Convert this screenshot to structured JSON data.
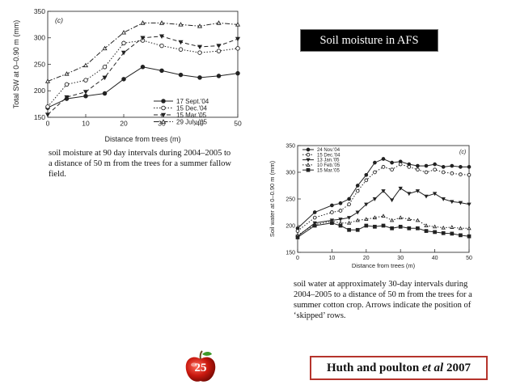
{
  "slide": {
    "title": "Soil moisture in AFS",
    "page_number": "25",
    "credit_main": "Huth and poulton ",
    "credit_italic": "et al",
    "credit_year": " 2007",
    "caption_left": "soil moisture at 90 day intervals during 2004–2005 to a distance of 50 m from the trees for a summer fallow field.",
    "caption_right": "soil water at approximately 30-day intervals during 2004–2005 to a distance of 50 m from the trees for a summer cotton crop. Arrows indicate the position of ‘skipped’ rows."
  },
  "chart_data": [
    {
      "type": "line",
      "panel_label": "(c)",
      "xlabel": "Distance from trees (m)",
      "ylabel": "Total SW at 0–0.90 m (mm)",
      "xlim": [
        0,
        50
      ],
      "ylim": [
        150,
        350
      ],
      "xticks": [
        0,
        10,
        20,
        30,
        40,
        50
      ],
      "yticks": [
        150,
        200,
        250,
        300,
        350
      ],
      "grid": false,
      "legend_position": "bottom-right",
      "series": [
        {
          "name": "17 Sept.'04",
          "marker": "filled-circle",
          "dash": "solid",
          "x": [
            0,
            5,
            10,
            15,
            20,
            25,
            30,
            35,
            40,
            45,
            50
          ],
          "y": [
            168,
            185,
            190,
            195,
            222,
            245,
            238,
            230,
            225,
            228,
            233
          ]
        },
        {
          "name": "15 Dec.'04",
          "marker": "open-circle",
          "dash": "dotted",
          "x": [
            0,
            5,
            10,
            15,
            20,
            25,
            30,
            35,
            40,
            45,
            50
          ],
          "y": [
            170,
            212,
            220,
            245,
            290,
            295,
            285,
            278,
            272,
            275,
            280
          ]
        },
        {
          "name": "15 Mar.'05",
          "marker": "filled-triangle-down",
          "dash": "dashed",
          "x": [
            0,
            5,
            10,
            15,
            20,
            25,
            30,
            35,
            40,
            45,
            50
          ],
          "y": [
            155,
            188,
            198,
            225,
            272,
            300,
            303,
            292,
            283,
            285,
            298
          ]
        },
        {
          "name": "29 July '05",
          "marker": "open-triangle-up",
          "dash": "dashdot",
          "x": [
            0,
            5,
            10,
            15,
            20,
            25,
            30,
            35,
            40,
            45,
            50
          ],
          "y": [
            218,
            232,
            248,
            280,
            310,
            328,
            328,
            325,
            322,
            328,
            325
          ]
        }
      ]
    },
    {
      "type": "line",
      "panel_label": "(c)",
      "xlabel": "Distance from trees (m)",
      "ylabel": "Soil water at 0–0.90 m (mm)",
      "xlim": [
        0,
        50
      ],
      "ylim": [
        150,
        350
      ],
      "xticks": [
        0,
        10,
        20,
        30,
        40,
        50
      ],
      "yticks": [
        150,
        200,
        250,
        300,
        350
      ],
      "grid": false,
      "legend_position": "top-left",
      "series": [
        {
          "name": "24 Nov.'04",
          "marker": "filled-circle",
          "dash": "solid",
          "x": [
            0,
            5,
            10,
            12.5,
            15,
            17.5,
            20,
            22.5,
            25,
            27.5,
            30,
            32.5,
            35,
            37.5,
            40,
            42.5,
            45,
            47.5,
            50
          ],
          "y": [
            195,
            225,
            238,
            242,
            250,
            275,
            295,
            318,
            325,
            318,
            320,
            315,
            312,
            312,
            315,
            310,
            312,
            310,
            310
          ]
        },
        {
          "name": "15 Dec.'04",
          "marker": "open-circle",
          "dash": "dotted",
          "x": [
            0,
            5,
            10,
            12.5,
            15,
            17.5,
            20,
            22.5,
            25,
            27.5,
            30,
            32.5,
            35,
            37.5,
            40,
            42.5,
            45,
            47.5,
            50
          ],
          "y": [
            190,
            215,
            225,
            228,
            240,
            265,
            285,
            300,
            310,
            305,
            315,
            310,
            305,
            300,
            305,
            300,
            298,
            296,
            295
          ]
        },
        {
          "name": "13 Jan.'05",
          "marker": "filled-triangle-down",
          "dash": "solid",
          "x": [
            0,
            5,
            10,
            12.5,
            15,
            17.5,
            20,
            22.5,
            25,
            27.5,
            30,
            32.5,
            35,
            37.5,
            40,
            42.5,
            45,
            47.5,
            50
          ],
          "y": [
            180,
            205,
            210,
            212,
            215,
            225,
            240,
            250,
            265,
            248,
            270,
            260,
            265,
            255,
            260,
            250,
            245,
            243,
            240
          ]
        },
        {
          "name": "10 Feb.'05",
          "marker": "open-triangle-up",
          "dash": "dotted",
          "x": [
            0,
            5,
            10,
            12.5,
            15,
            17.5,
            20,
            22.5,
            25,
            27.5,
            30,
            32.5,
            35,
            37.5,
            40,
            42.5,
            45,
            47.5,
            50
          ],
          "y": [
            182,
            202,
            208,
            205,
            205,
            210,
            212,
            215,
            218,
            210,
            215,
            212,
            210,
            200,
            198,
            196,
            197,
            195,
            195
          ]
        },
        {
          "name": "15 Mar.'05",
          "marker": "filled-square",
          "dash": "solid",
          "x": [
            0,
            5,
            10,
            12.5,
            15,
            17.5,
            20,
            22.5,
            25,
            27.5,
            30,
            32.5,
            35,
            37.5,
            40,
            42.5,
            45,
            47.5,
            50
          ],
          "y": [
            178,
            200,
            205,
            200,
            192,
            192,
            200,
            198,
            200,
            195,
            198,
            195,
            195,
            190,
            188,
            186,
            185,
            182,
            180
          ]
        }
      ]
    }
  ]
}
